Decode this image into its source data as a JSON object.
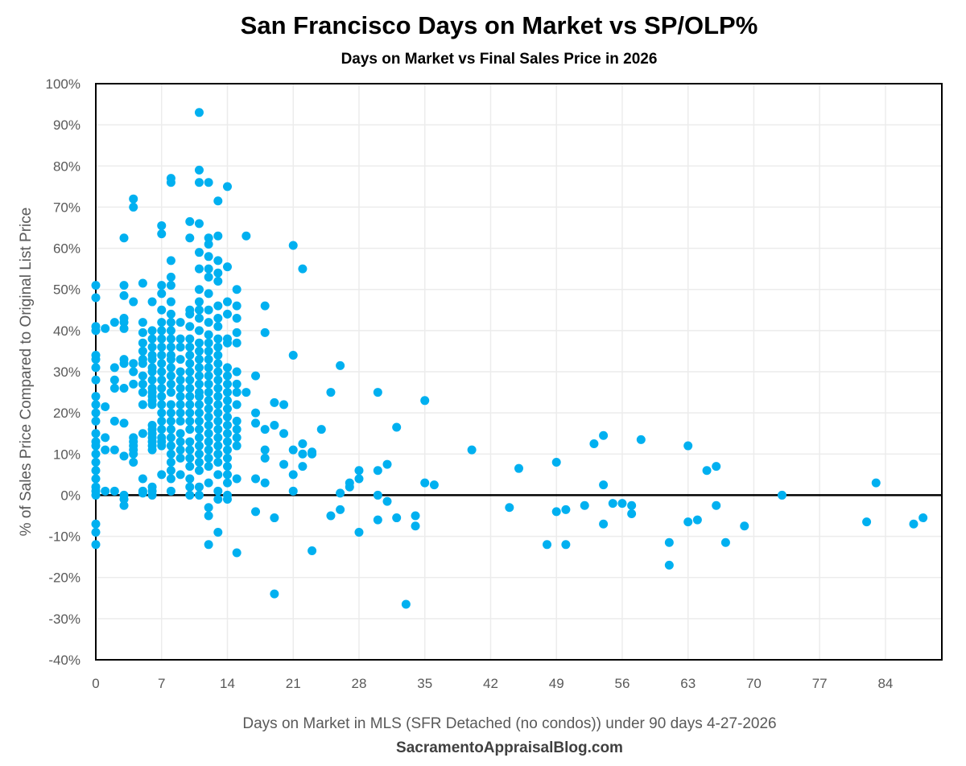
{
  "chart_data": {
    "type": "scatter",
    "title": "San Francisco Days on Market vs SP/OLP%",
    "subtitle": "Days on Market vs Final Sales Price in 2026",
    "xlabel": "Days on Market in MLS (SFR Detached (no condos)) under 90 days 4-27-2026",
    "ylabel": "% of Sales Price Compared to Original List Price",
    "source": "SacramentoAppraisalBlog.com",
    "xlim": [
      0,
      90
    ],
    "ylim": [
      -40,
      100
    ],
    "x_ticks": [
      0,
      7,
      14,
      21,
      28,
      35,
      42,
      49,
      56,
      63,
      70,
      77,
      84
    ],
    "x_tick_labels": [
      "0",
      "7",
      "14",
      "21",
      "28",
      "35",
      "42",
      "49",
      "56",
      "63",
      "70",
      "77",
      "84"
    ],
    "y_ticks": [
      100,
      90,
      80,
      70,
      60,
      50,
      40,
      30,
      20,
      10,
      0,
      -10,
      -20,
      -30,
      -40
    ],
    "y_tick_labels": [
      "100%",
      "90%",
      "80%",
      "70%",
      "60%",
      "50%",
      "40%",
      "30%",
      "20%",
      "10%",
      "0%",
      "-10%",
      "-20%",
      "-30%",
      "-40%"
    ],
    "grid": true,
    "marker_color": "#00B0F0",
    "zero_line_color": "#000000",
    "points": [
      [
        0,
        51
      ],
      [
        0,
        48
      ],
      [
        0,
        41
      ],
      [
        0,
        40
      ],
      [
        0,
        34
      ],
      [
        0,
        33
      ],
      [
        0,
        31
      ],
      [
        0,
        28
      ],
      [
        0,
        24
      ],
      [
        0,
        22
      ],
      [
        0,
        20
      ],
      [
        0,
        18
      ],
      [
        0,
        15
      ],
      [
        0,
        13
      ],
      [
        0,
        12
      ],
      [
        0,
        10
      ],
      [
        0,
        8
      ],
      [
        0,
        6
      ],
      [
        0,
        4
      ],
      [
        0,
        2
      ],
      [
        0,
        1
      ],
      [
        0,
        0
      ],
      [
        0,
        -7
      ],
      [
        0,
        -9
      ],
      [
        0,
        -12
      ],
      [
        1,
        40.5
      ],
      [
        1,
        21.5
      ],
      [
        1,
        14
      ],
      [
        1,
        11
      ],
      [
        1,
        1
      ],
      [
        2,
        42
      ],
      [
        2,
        31
      ],
      [
        2,
        28
      ],
      [
        2,
        26
      ],
      [
        2,
        18
      ],
      [
        2,
        11
      ],
      [
        2,
        1
      ],
      [
        3,
        62.5
      ],
      [
        3,
        51
      ],
      [
        3,
        48.5
      ],
      [
        3,
        43
      ],
      [
        3,
        42
      ],
      [
        3,
        40.5
      ],
      [
        3,
        33
      ],
      [
        3,
        32
      ],
      [
        3,
        26
      ],
      [
        3,
        17.5
      ],
      [
        3,
        9.5
      ],
      [
        3,
        0
      ],
      [
        3,
        -1
      ],
      [
        3,
        -2.5
      ],
      [
        4,
        72
      ],
      [
        4,
        70
      ],
      [
        4,
        47
      ],
      [
        4,
        32
      ],
      [
        4,
        30
      ],
      [
        4,
        27
      ],
      [
        4,
        14
      ],
      [
        4,
        13
      ],
      [
        4,
        12
      ],
      [
        4,
        11
      ],
      [
        4,
        10
      ],
      [
        4,
        8
      ],
      [
        5,
        51.5
      ],
      [
        5,
        42
      ],
      [
        5,
        39.5
      ],
      [
        5,
        37
      ],
      [
        5,
        35
      ],
      [
        5,
        33
      ],
      [
        5,
        32
      ],
      [
        5,
        29
      ],
      [
        5,
        27
      ],
      [
        5,
        25
      ],
      [
        5,
        22
      ],
      [
        5,
        15
      ],
      [
        5,
        4
      ],
      [
        5,
        1
      ],
      [
        5,
        0.5
      ],
      [
        6,
        47
      ],
      [
        6,
        40
      ],
      [
        6,
        38
      ],
      [
        6,
        36
      ],
      [
        6,
        34
      ],
      [
        6,
        33
      ],
      [
        6,
        31
      ],
      [
        6,
        30
      ],
      [
        6,
        28
      ],
      [
        6,
        26
      ],
      [
        6,
        25
      ],
      [
        6,
        24
      ],
      [
        6,
        23
      ],
      [
        6,
        22
      ],
      [
        6,
        17
      ],
      [
        6,
        16
      ],
      [
        6,
        15
      ],
      [
        6,
        14
      ],
      [
        6,
        13
      ],
      [
        6,
        12
      ],
      [
        6,
        11
      ],
      [
        6,
        2
      ],
      [
        6,
        1
      ],
      [
        6,
        0
      ],
      [
        7,
        65.5
      ],
      [
        7,
        63.5
      ],
      [
        7,
        51
      ],
      [
        7,
        49
      ],
      [
        7,
        45
      ],
      [
        7,
        42
      ],
      [
        7,
        40
      ],
      [
        7,
        38
      ],
      [
        7,
        36
      ],
      [
        7,
        34
      ],
      [
        7,
        32
      ],
      [
        7,
        30
      ],
      [
        7,
        28
      ],
      [
        7,
        26
      ],
      [
        7,
        24
      ],
      [
        7,
        22
      ],
      [
        7,
        20
      ],
      [
        7,
        18
      ],
      [
        7,
        16
      ],
      [
        7,
        14
      ],
      [
        7,
        13
      ],
      [
        7,
        12
      ],
      [
        7,
        5
      ],
      [
        8,
        77
      ],
      [
        8,
        76
      ],
      [
        8,
        57
      ],
      [
        8,
        53
      ],
      [
        8,
        51
      ],
      [
        8,
        47
      ],
      [
        8,
        44
      ],
      [
        8,
        42
      ],
      [
        8,
        40
      ],
      [
        8,
        38
      ],
      [
        8,
        36
      ],
      [
        8,
        34
      ],
      [
        8,
        33
      ],
      [
        8,
        31
      ],
      [
        8,
        29
      ],
      [
        8,
        27
      ],
      [
        8,
        25
      ],
      [
        8,
        22
      ],
      [
        8,
        20
      ],
      [
        8,
        18
      ],
      [
        8,
        16
      ],
      [
        8,
        14
      ],
      [
        8,
        12
      ],
      [
        8,
        10
      ],
      [
        8,
        8
      ],
      [
        8,
        6
      ],
      [
        8,
        4
      ],
      [
        8,
        1
      ],
      [
        9,
        42
      ],
      [
        9,
        38
      ],
      [
        9,
        36
      ],
      [
        9,
        33
      ],
      [
        9,
        30
      ],
      [
        9,
        28
      ],
      [
        9,
        26
      ],
      [
        9,
        24
      ],
      [
        9,
        22
      ],
      [
        9,
        20
      ],
      [
        9,
        18
      ],
      [
        9,
        15
      ],
      [
        9,
        13
      ],
      [
        9,
        11
      ],
      [
        9,
        9
      ],
      [
        9,
        5
      ],
      [
        10,
        66.5
      ],
      [
        10,
        62.5
      ],
      [
        10,
        45
      ],
      [
        10,
        44
      ],
      [
        10,
        41
      ],
      [
        10,
        38
      ],
      [
        10,
        36
      ],
      [
        10,
        34
      ],
      [
        10,
        32
      ],
      [
        10,
        30
      ],
      [
        10,
        28
      ],
      [
        10,
        26
      ],
      [
        10,
        24
      ],
      [
        10,
        22
      ],
      [
        10,
        20
      ],
      [
        10,
        18
      ],
      [
        10,
        16
      ],
      [
        10,
        13
      ],
      [
        10,
        11
      ],
      [
        10,
        9
      ],
      [
        10,
        7
      ],
      [
        10,
        4
      ],
      [
        10,
        2
      ],
      [
        10,
        0
      ],
      [
        11,
        93
      ],
      [
        11,
        79
      ],
      [
        11,
        76
      ],
      [
        11,
        66
      ],
      [
        11,
        59
      ],
      [
        11,
        55
      ],
      [
        11,
        50
      ],
      [
        11,
        47
      ],
      [
        11,
        45
      ],
      [
        11,
        43
      ],
      [
        11,
        40
      ],
      [
        11,
        37
      ],
      [
        11,
        35
      ],
      [
        11,
        33
      ],
      [
        11,
        31
      ],
      [
        11,
        29
      ],
      [
        11,
        27
      ],
      [
        11,
        25
      ],
      [
        11,
        24
      ],
      [
        11,
        22
      ],
      [
        11,
        20
      ],
      [
        11,
        18
      ],
      [
        11,
        16
      ],
      [
        11,
        14
      ],
      [
        11,
        12
      ],
      [
        11,
        10
      ],
      [
        11,
        8
      ],
      [
        11,
        6
      ],
      [
        11,
        2
      ],
      [
        11,
        0
      ],
      [
        12,
        76
      ],
      [
        12,
        62.5
      ],
      [
        12,
        61
      ],
      [
        12,
        58
      ],
      [
        12,
        55
      ],
      [
        12,
        53
      ],
      [
        12,
        49
      ],
      [
        12,
        45
      ],
      [
        12,
        42
      ],
      [
        12,
        39
      ],
      [
        12,
        37
      ],
      [
        12,
        35
      ],
      [
        12,
        33
      ],
      [
        12,
        31
      ],
      [
        12,
        29
      ],
      [
        12,
        27
      ],
      [
        12,
        25
      ],
      [
        12,
        23
      ],
      [
        12,
        21
      ],
      [
        12,
        19
      ],
      [
        12,
        17
      ],
      [
        12,
        15
      ],
      [
        12,
        13
      ],
      [
        12,
        11
      ],
      [
        12,
        9
      ],
      [
        12,
        7
      ],
      [
        12,
        3
      ],
      [
        12,
        -3
      ],
      [
        12,
        -5
      ],
      [
        12,
        -12
      ],
      [
        13,
        71.5
      ],
      [
        13,
        63
      ],
      [
        13,
        57
      ],
      [
        13,
        54
      ],
      [
        13,
        52
      ],
      [
        13,
        46
      ],
      [
        13,
        43
      ],
      [
        13,
        41
      ],
      [
        13,
        38
      ],
      [
        13,
        36
      ],
      [
        13,
        34
      ],
      [
        13,
        32
      ],
      [
        13,
        30
      ],
      [
        13,
        28
      ],
      [
        13,
        26
      ],
      [
        13,
        24
      ],
      [
        13,
        22
      ],
      [
        13,
        20
      ],
      [
        13,
        18
      ],
      [
        13,
        16
      ],
      [
        13,
        14
      ],
      [
        13,
        12
      ],
      [
        13,
        10
      ],
      [
        13,
        8
      ],
      [
        13,
        5
      ],
      [
        13,
        1
      ],
      [
        13,
        -1
      ],
      [
        13,
        -9
      ],
      [
        14,
        75
      ],
      [
        14,
        55.5
      ],
      [
        14,
        47
      ],
      [
        14,
        44
      ],
      [
        14,
        38
      ],
      [
        14,
        37
      ],
      [
        14,
        31
      ],
      [
        14,
        29
      ],
      [
        14,
        27
      ],
      [
        14,
        25
      ],
      [
        14,
        23
      ],
      [
        14,
        21
      ],
      [
        14,
        19
      ],
      [
        14,
        17
      ],
      [
        14,
        15
      ],
      [
        14,
        13
      ],
      [
        14,
        11
      ],
      [
        14,
        9
      ],
      [
        14,
        7
      ],
      [
        14,
        5
      ],
      [
        14,
        3
      ],
      [
        14,
        0
      ],
      [
        14,
        -1
      ],
      [
        15,
        50
      ],
      [
        15,
        46
      ],
      [
        15,
        43
      ],
      [
        15,
        39.5
      ],
      [
        15,
        37
      ],
      [
        15,
        30
      ],
      [
        15,
        27
      ],
      [
        15,
        25
      ],
      [
        15,
        22
      ],
      [
        15,
        18
      ],
      [
        15,
        16
      ],
      [
        15,
        14
      ],
      [
        15,
        12
      ],
      [
        15,
        4
      ],
      [
        15,
        -14
      ],
      [
        16,
        63
      ],
      [
        16,
        25
      ],
      [
        17,
        29
      ],
      [
        17,
        20
      ],
      [
        17,
        17.5
      ],
      [
        17,
        4
      ],
      [
        17,
        -4
      ],
      [
        18,
        46
      ],
      [
        18,
        39.5
      ],
      [
        18,
        16
      ],
      [
        18,
        11
      ],
      [
        18,
        9
      ],
      [
        18,
        3
      ],
      [
        19,
        22.5
      ],
      [
        19,
        17
      ],
      [
        19,
        -5.5
      ],
      [
        19,
        -24
      ],
      [
        20,
        22
      ],
      [
        20,
        15
      ],
      [
        20,
        7.5
      ],
      [
        21,
        60.7
      ],
      [
        21,
        34
      ],
      [
        21,
        11
      ],
      [
        21,
        5
      ],
      [
        21,
        1
      ],
      [
        22,
        55
      ],
      [
        22,
        12.5
      ],
      [
        22,
        10
      ],
      [
        22,
        7
      ],
      [
        23,
        10.5
      ],
      [
        23,
        10
      ],
      [
        23,
        -13.5
      ],
      [
        24,
        16
      ],
      [
        25,
        25
      ],
      [
        25,
        -5
      ],
      [
        26,
        31.5
      ],
      [
        26,
        0.5
      ],
      [
        26,
        -3.5
      ],
      [
        27,
        2
      ],
      [
        27,
        3
      ],
      [
        28,
        4
      ],
      [
        28,
        6
      ],
      [
        28,
        -9
      ],
      [
        30,
        25
      ],
      [
        30,
        6
      ],
      [
        30,
        0
      ],
      [
        30,
        -6
      ],
      [
        31,
        7.5
      ],
      [
        31,
        -1.5
      ],
      [
        32,
        16.5
      ],
      [
        32,
        -5.5
      ],
      [
        33,
        -26.5
      ],
      [
        34,
        -5
      ],
      [
        34,
        -7.5
      ],
      [
        35,
        23
      ],
      [
        35,
        3
      ],
      [
        36,
        2.5
      ],
      [
        40,
        11
      ],
      [
        44,
        -3
      ],
      [
        45,
        6.5
      ],
      [
        48,
        -12
      ],
      [
        49,
        8
      ],
      [
        49,
        -4
      ],
      [
        50,
        -3.5
      ],
      [
        50,
        -12
      ],
      [
        52,
        -2.5
      ],
      [
        53,
        12.5
      ],
      [
        54,
        14.5
      ],
      [
        54,
        2.5
      ],
      [
        54,
        -7
      ],
      [
        55,
        -2
      ],
      [
        56,
        -2
      ],
      [
        57,
        -2.5
      ],
      [
        57,
        -4.5
      ],
      [
        58,
        13.5
      ],
      [
        61,
        -11.5
      ],
      [
        61,
        -17
      ],
      [
        63,
        12
      ],
      [
        63,
        -6.5
      ],
      [
        64,
        -6
      ],
      [
        65,
        6
      ],
      [
        66,
        7
      ],
      [
        66,
        -2.5
      ],
      [
        67,
        -11.5
      ],
      [
        69,
        -7.5
      ],
      [
        73,
        0
      ],
      [
        82,
        -6.5
      ],
      [
        83,
        3
      ],
      [
        87,
        -7
      ],
      [
        88,
        -5.5
      ]
    ]
  }
}
